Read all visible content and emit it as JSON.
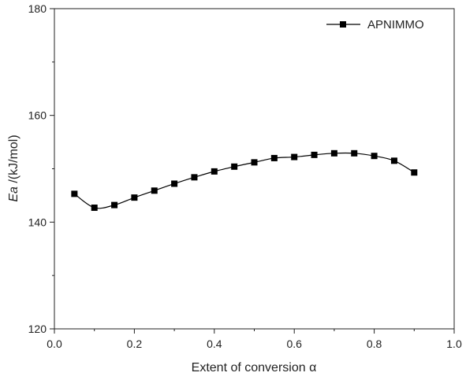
{
  "chart_data": {
    "type": "line",
    "xlabel": "Extent of conversion α",
    "ylabel_italic": "Ea",
    "ylabel_rest": " /(kJ/mol)",
    "xlim": [
      0.0,
      1.0
    ],
    "ylim": [
      120,
      180
    ],
    "xticks": [
      0.0,
      0.2,
      0.4,
      0.6,
      0.8,
      1.0
    ],
    "xtick_labels": [
      "0.0",
      "0.2",
      "0.4",
      "0.6",
      "0.8",
      "1.0"
    ],
    "yticks": [
      120,
      140,
      160,
      180
    ],
    "ytick_labels": [
      "120",
      "140",
      "160",
      "180"
    ],
    "legend_position": "top-right",
    "grid": false,
    "series": [
      {
        "name": "APNIMMO",
        "color": "#000000",
        "marker": "square",
        "x": [
          0.05,
          0.1,
          0.15,
          0.2,
          0.25,
          0.3,
          0.35,
          0.4,
          0.45,
          0.5,
          0.55,
          0.6,
          0.65,
          0.7,
          0.75,
          0.8,
          0.85,
          0.9
        ],
        "y": [
          145.3,
          142.7,
          143.2,
          144.6,
          145.9,
          147.2,
          148.4,
          149.5,
          150.4,
          151.2,
          152.0,
          152.2,
          152.6,
          152.9,
          152.9,
          152.4,
          151.5,
          149.3
        ]
      }
    ]
  }
}
